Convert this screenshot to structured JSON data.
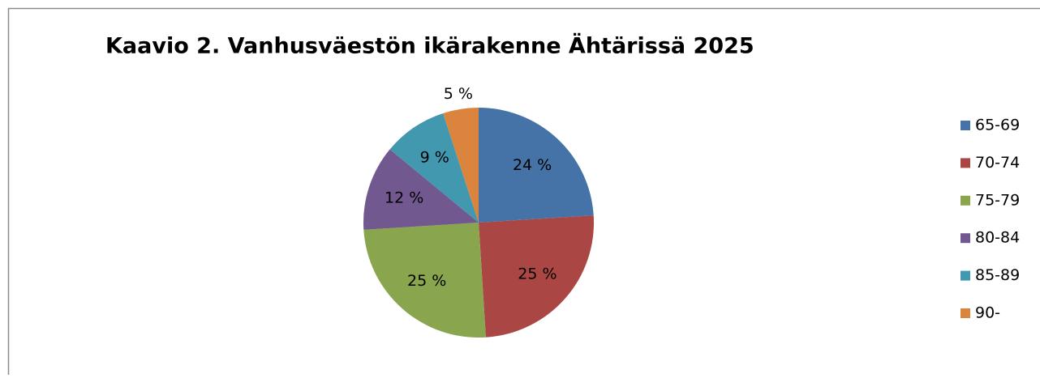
{
  "chart_data": {
    "type": "pie",
    "title": "Kaavio 2. Vanhusväestön ikärakenne Ähtärissä 2025",
    "categories": [
      "65-69",
      "70-74",
      "75-79",
      "80-84",
      "85-89",
      "90-"
    ],
    "values": [
      24,
      25,
      25,
      12,
      9,
      5
    ],
    "value_labels": [
      "24 %",
      "25 %",
      "25 %",
      "12 %",
      "9 %",
      "5 %"
    ],
    "colors": [
      "#4572a7",
      "#aa4643",
      "#89a54e",
      "#71588f",
      "#4198af",
      "#db843d"
    ],
    "legend": "right"
  }
}
